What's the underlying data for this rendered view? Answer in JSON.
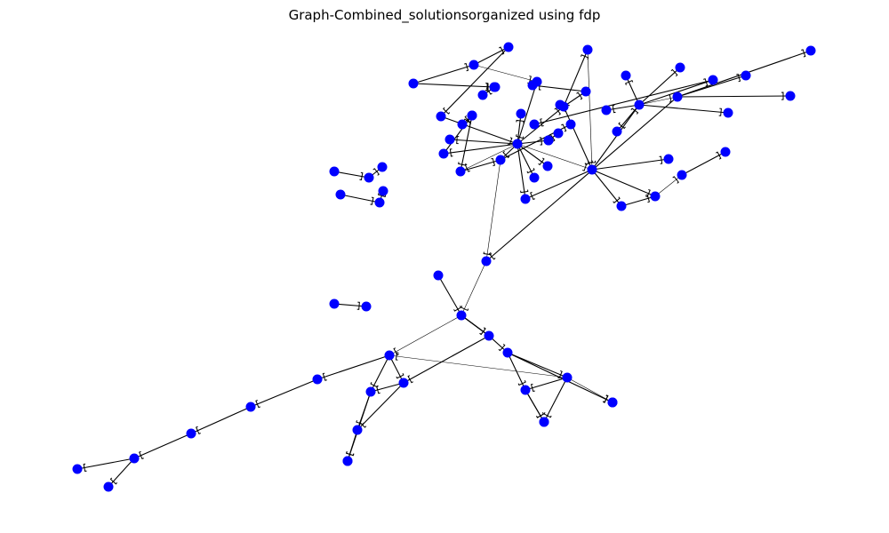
{
  "title": "Graph-Combined_solutionsorganized using fdp",
  "colors": {
    "node": "#0000ff",
    "edge": "#000000",
    "background": "#ffffff"
  },
  "graph": {
    "node_marker": "filled-circle",
    "edge_marker": "bracket-arrowhead",
    "nodes": [
      "n1",
      "n2",
      "n3",
      "n4",
      "n5",
      "n6",
      "n7",
      "n8",
      "n9",
      "n10",
      "n11",
      "n12",
      "n13",
      "n14",
      "n15",
      "n16",
      "n17",
      "n18",
      "n19",
      "n20",
      "n21",
      "n22",
      "n23",
      "n24",
      "n25",
      "n26",
      "n27",
      "n28",
      "n29",
      "n30",
      "n31",
      "n32",
      "n33",
      "n34",
      "n35",
      "n36",
      "n37",
      "n38",
      "n39",
      "n40",
      "n41",
      "n42",
      "n43",
      "n44",
      "n45",
      "n46",
      "n47",
      "n48",
      "n49",
      "n50",
      "n51",
      "n52",
      "n53",
      "n54",
      "n55",
      "n56",
      "n57",
      "n58",
      "n59",
      "n60",
      "n61",
      "n62",
      "n63",
      "n64",
      "n65",
      "n66",
      "n67",
      "n68",
      "n69",
      "n70",
      "n71",
      "n72",
      "n73",
      "n74",
      "n75",
      "n76",
      "n77",
      "n78"
    ],
    "edges": [
      [
        "n1",
        "n2"
      ],
      [
        "n1",
        "n5"
      ],
      [
        "n2",
        "n3"
      ],
      [
        "n2",
        "n4"
      ],
      [
        "n3",
        "n6"
      ],
      [
        "n4",
        "n7"
      ],
      [
        "n6",
        "n7"
      ],
      [
        "n7",
        "n8"
      ],
      [
        "n7",
        "n9"
      ],
      [
        "n7",
        "n11"
      ],
      [
        "n7",
        "n12"
      ],
      [
        "n7",
        "n13"
      ],
      [
        "n7",
        "n14"
      ],
      [
        "n7",
        "n15"
      ],
      [
        "n7",
        "n16"
      ],
      [
        "n7",
        "n17"
      ],
      [
        "n7",
        "n18"
      ],
      [
        "n7",
        "n21"
      ],
      [
        "n10",
        "n12"
      ],
      [
        "n12",
        "n13"
      ],
      [
        "n13",
        "n23"
      ],
      [
        "n9",
        "n19"
      ],
      [
        "n9",
        "n20"
      ],
      [
        "n9",
        "n21"
      ],
      [
        "n20",
        "n21"
      ],
      [
        "n21",
        "n22"
      ],
      [
        "n21",
        "n30"
      ],
      [
        "n22",
        "n24"
      ],
      [
        "n22",
        "n25"
      ],
      [
        "n22",
        "n26"
      ],
      [
        "n22",
        "n27"
      ],
      [
        "n22",
        "n28"
      ],
      [
        "n22",
        "n29"
      ],
      [
        "n22",
        "n31"
      ],
      [
        "n19",
        "n32"
      ],
      [
        "n21",
        "n33"
      ],
      [
        "n21",
        "n34"
      ],
      [
        "n33",
        "n34"
      ],
      [
        "n34",
        "n35"
      ],
      [
        "n35",
        "n36"
      ],
      [
        "n28",
        "n37"
      ],
      [
        "n28",
        "n38"
      ],
      [
        "n28",
        "n40"
      ],
      [
        "n28",
        "n39"
      ],
      [
        "n29",
        "n41"
      ],
      [
        "n13",
        "n40"
      ],
      [
        "n21",
        "n18"
      ],
      [
        "n42",
        "n43"
      ],
      [
        "n43",
        "n44"
      ],
      [
        "n45",
        "n47"
      ],
      [
        "n46",
        "n47"
      ],
      [
        "n48",
        "n49"
      ],
      [
        "n40",
        "n51"
      ],
      [
        "n50",
        "n51"
      ],
      [
        "n51",
        "n52"
      ],
      [
        "n52",
        "n53"
      ],
      [
        "n52",
        "n60"
      ],
      [
        "n53",
        "n54"
      ],
      [
        "n53",
        "n65"
      ],
      [
        "n54",
        "n55"
      ],
      [
        "n54",
        "n57"
      ],
      [
        "n54",
        "n58"
      ],
      [
        "n57",
        "n59"
      ],
      [
        "n60",
        "n61"
      ],
      [
        "n60",
        "n62"
      ],
      [
        "n61",
        "n63"
      ],
      [
        "n63",
        "n64"
      ],
      [
        "n55",
        "n66"
      ],
      [
        "n66",
        "n67"
      ],
      [
        "n67",
        "n68"
      ],
      [
        "n68",
        "n69"
      ],
      [
        "n69",
        "n70"
      ],
      [
        "n69",
        "n71"
      ],
      [
        "n5",
        "n72"
      ],
      [
        "n72",
        "n73"
      ],
      [
        "n11",
        "n74"
      ],
      [
        "n74",
        "n75"
      ],
      [
        "n15",
        "n76"
      ],
      [
        "n76",
        "n77"
      ],
      [
        "n9",
        "n78"
      ]
    ]
  }
}
